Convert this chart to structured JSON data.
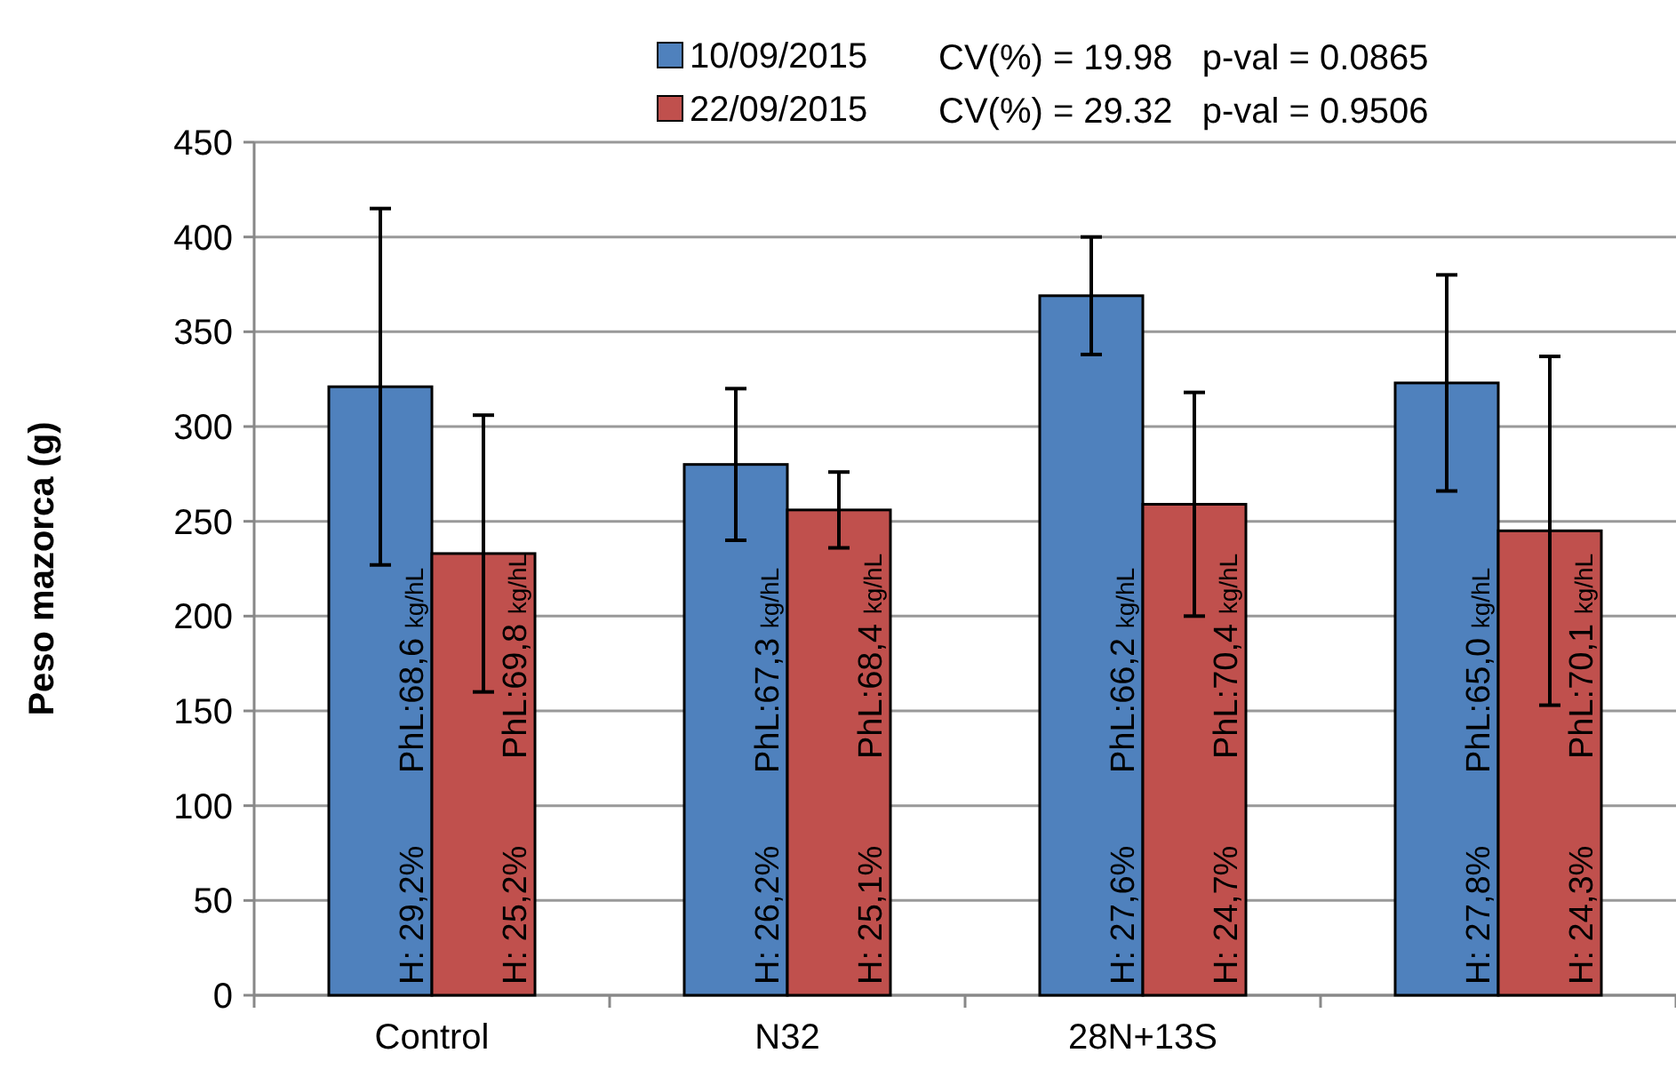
{
  "chart_data": {
    "type": "bar",
    "ylabel": "Peso mazorca (g)",
    "categories": [
      "Control",
      "N32",
      "28N+13S",
      null
    ],
    "series": [
      {
        "name": "10/09/2015",
        "color": "#4f81bd",
        "values": [
          321,
          280,
          369,
          323
        ],
        "errors": [
          94,
          40,
          31,
          57
        ]
      },
      {
        "name": "22/09/2015",
        "color": "#c0504d",
        "values": [
          233,
          256,
          259,
          245
        ],
        "errors": [
          73,
          20,
          59,
          92
        ]
      }
    ],
    "ylim": [
      0,
      450
    ],
    "yticks": [
      0,
      50,
      100,
      150,
      200,
      250,
      300,
      350,
      400,
      450
    ],
    "grid": "y",
    "legend": "top",
    "annotations": [
      "CV(%) = 19.98   p-val = 0.0865",
      "CV(%) = 29.32   p-val = 0.9506",
      "PhL:68,6 kg/hL",
      "H: 29,2%",
      "PhL:69,8 kg/hL",
      "H: 25,2%",
      "PhL:67,3 kg/hL",
      "H: 26,2%",
      "PhL:68,4 kg/hL",
      "H: 25,1%",
      "PhL:66,2 kg/hL",
      "H: 27,6%",
      "PhL:70,4 kg/hL",
      "H: 24,7%",
      "PhL:65,0 kg/hL",
      "H: 27,8%",
      "PhL:70,1 kg/hL",
      "H: 24,3%"
    ]
  }
}
